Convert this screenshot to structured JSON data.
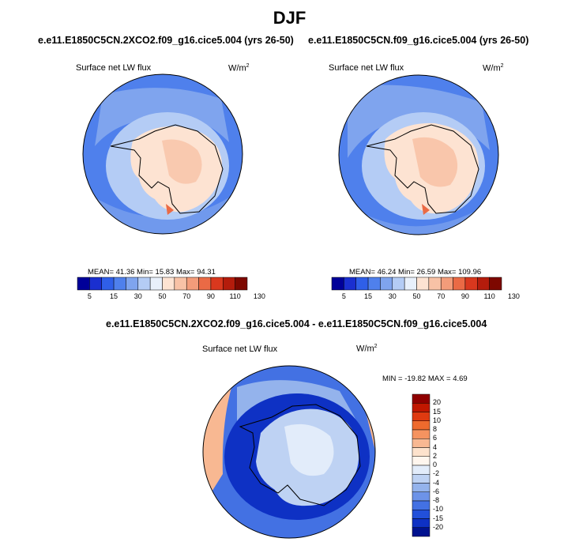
{
  "season_title": "DJF",
  "panels": [
    {
      "case_title": "e.e11.E1850C5CN.2XCO2.f09_g16.cice5.004 (yrs 26-50)",
      "variable": "Surface net LW flux",
      "units": "W/m",
      "units_exp": "2",
      "stats": "MEAN=  41.36  Min=  15.83  Max=  94.31"
    },
    {
      "case_title": "e.e11.E1850C5CN.f09_g16.cice5.004 (yrs 26-50)",
      "variable": "Surface net LW flux",
      "units": "W/m",
      "units_exp": "2",
      "stats": "MEAN=  46.24  Min=  26.59  Max= 109.96"
    }
  ],
  "diff_panel": {
    "case_title": "e.e11.E1850C5CN.2XCO2.f09_g16.cice5.004 - e.e11.E1850C5CN.f09_g16.cice5.004",
    "variable": "Surface net LW flux",
    "units": "W/m",
    "units_exp": "2",
    "stats": "MIN = -19.82  MAX =   4.69"
  },
  "colorbar_abs": {
    "colors": [
      "#000099",
      "#1a2fd0",
      "#2f5fe8",
      "#4f80ec",
      "#7fa4ee",
      "#b4ccf5",
      "#e8f0fb",
      "#fde3d2",
      "#f8c2a6",
      "#f39c7a",
      "#ea6a45",
      "#d9381e",
      "#b41c0c",
      "#7d0800"
    ],
    "ticks": [
      "5",
      "15",
      "30",
      "50",
      "70",
      "90",
      "110",
      "130"
    ]
  },
  "colorbar_diff": {
    "colors_top_to_bottom": [
      "#900000",
      "#c11700",
      "#df3a10",
      "#ee6a2d",
      "#f59360",
      "#f8b892",
      "#fde2cc",
      "#fff6ee",
      "#e2ecfa",
      "#bed2f3",
      "#94b3ec",
      "#6d93e8",
      "#4371e3",
      "#2250da",
      "#0e31c4",
      "#00128f"
    ],
    "ticks_top_to_bottom": [
      "20",
      "15",
      "10",
      "8",
      "6",
      "4",
      "2",
      "0",
      "-2",
      "-4",
      "-6",
      "-8",
      "-10",
      "-15",
      "-20"
    ]
  },
  "map_colors": {
    "ocean_abs": "#4f80ec",
    "ocean_light_abs": "#7fa4ee",
    "ice_abs": "#b4ccf5",
    "land_abs": "#fde3d2",
    "land_warm_abs": "#f8c2a6",
    "hot_abs": "#ea6a45",
    "ocean_diff": "#4371e3",
    "ocean_diff_light": "#94b3ec",
    "ring_diff": "#0e31c4",
    "land_diff": "#bed2f3",
    "land_diff_light": "#e2ecfa",
    "rim_diff_warm": "#f8b892"
  }
}
